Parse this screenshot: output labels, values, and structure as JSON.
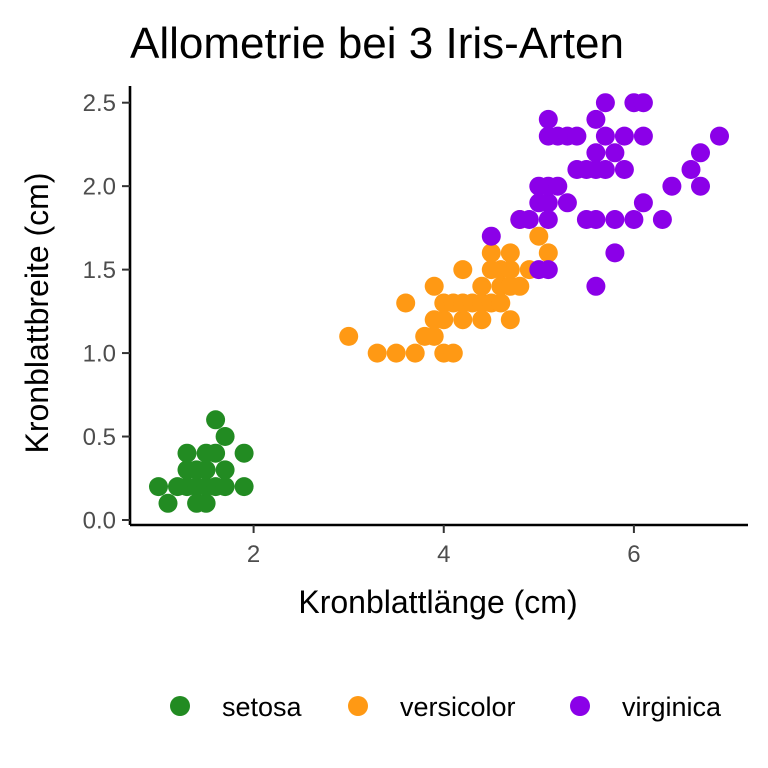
{
  "chart_data": {
    "type": "scatter",
    "title": "Allometrie bei 3 Iris-Arten",
    "xlabel": "Kronblattlänge (cm)",
    "ylabel": "Kronblattbreite (cm)",
    "xlim": [
      0.7,
      7.2
    ],
    "ylim": [
      -0.03,
      2.6
    ],
    "xticks": [
      2,
      4,
      6
    ],
    "xtick_labels": [
      "2",
      "4",
      "6"
    ],
    "yticks": [
      0.0,
      0.5,
      1.0,
      1.5,
      2.0,
      2.5
    ],
    "ytick_labels": [
      "0.0",
      "0.5",
      "1.0",
      "1.5",
      "2.0",
      "2.5"
    ],
    "grid": false,
    "legend_position": "bottom",
    "series": [
      {
        "name": "setosa",
        "color": "#228B22",
        "points": [
          [
            1.0,
            0.2
          ],
          [
            1.1,
            0.1
          ],
          [
            1.2,
            0.2
          ],
          [
            1.3,
            0.2
          ],
          [
            1.3,
            0.3
          ],
          [
            1.3,
            0.4
          ],
          [
            1.4,
            0.1
          ],
          [
            1.4,
            0.2
          ],
          [
            1.4,
            0.3
          ],
          [
            1.5,
            0.1
          ],
          [
            1.5,
            0.2
          ],
          [
            1.5,
            0.3
          ],
          [
            1.5,
            0.4
          ],
          [
            1.6,
            0.2
          ],
          [
            1.6,
            0.4
          ],
          [
            1.6,
            0.6
          ],
          [
            1.7,
            0.2
          ],
          [
            1.7,
            0.3
          ],
          [
            1.7,
            0.5
          ],
          [
            1.9,
            0.2
          ],
          [
            1.9,
            0.4
          ]
        ]
      },
      {
        "name": "versicolor",
        "color": "#FF9914",
        "points": [
          [
            3.0,
            1.1
          ],
          [
            3.3,
            1.0
          ],
          [
            3.5,
            1.0
          ],
          [
            3.6,
            1.3
          ],
          [
            3.7,
            1.0
          ],
          [
            3.8,
            1.1
          ],
          [
            3.9,
            1.1
          ],
          [
            3.9,
            1.2
          ],
          [
            3.9,
            1.4
          ],
          [
            4.0,
            1.0
          ],
          [
            4.0,
            1.2
          ],
          [
            4.0,
            1.3
          ],
          [
            4.1,
            1.0
          ],
          [
            4.1,
            1.3
          ],
          [
            4.2,
            1.2
          ],
          [
            4.2,
            1.3
          ],
          [
            4.2,
            1.5
          ],
          [
            4.3,
            1.3
          ],
          [
            4.4,
            1.2
          ],
          [
            4.4,
            1.3
          ],
          [
            4.4,
            1.4
          ],
          [
            4.5,
            1.3
          ],
          [
            4.5,
            1.5
          ],
          [
            4.6,
            1.3
          ],
          [
            4.6,
            1.4
          ],
          [
            4.6,
            1.5
          ],
          [
            4.7,
            1.2
          ],
          [
            4.7,
            1.4
          ],
          [
            4.7,
            1.5
          ],
          [
            4.8,
            1.4
          ],
          [
            4.8,
            1.8
          ],
          [
            4.9,
            1.5
          ],
          [
            5.0,
            1.7
          ],
          [
            5.1,
            1.6
          ],
          [
            4.5,
            1.6
          ],
          [
            4.7,
            1.6
          ]
        ]
      },
      {
        "name": "virginica",
        "color": "#8B00E8",
        "points": [
          [
            4.5,
            1.7
          ],
          [
            4.8,
            1.8
          ],
          [
            4.9,
            1.8
          ],
          [
            5.0,
            1.5
          ],
          [
            5.0,
            1.9
          ],
          [
            5.0,
            2.0
          ],
          [
            5.1,
            1.5
          ],
          [
            5.1,
            1.8
          ],
          [
            5.1,
            1.9
          ],
          [
            5.1,
            2.0
          ],
          [
            5.1,
            2.3
          ],
          [
            5.1,
            2.4
          ],
          [
            5.2,
            2.0
          ],
          [
            5.2,
            2.3
          ],
          [
            5.3,
            1.9
          ],
          [
            5.3,
            2.3
          ],
          [
            5.4,
            2.1
          ],
          [
            5.4,
            2.3
          ],
          [
            5.5,
            1.8
          ],
          [
            5.5,
            2.1
          ],
          [
            5.6,
            1.4
          ],
          [
            5.6,
            1.8
          ],
          [
            5.6,
            2.1
          ],
          [
            5.6,
            2.2
          ],
          [
            5.6,
            2.4
          ],
          [
            5.7,
            2.1
          ],
          [
            5.7,
            2.3
          ],
          [
            5.7,
            2.5
          ],
          [
            5.8,
            1.6
          ],
          [
            5.8,
            1.8
          ],
          [
            5.8,
            2.2
          ],
          [
            5.9,
            2.1
          ],
          [
            5.9,
            2.3
          ],
          [
            6.0,
            1.8
          ],
          [
            6.0,
            2.5
          ],
          [
            6.1,
            1.9
          ],
          [
            6.1,
            2.3
          ],
          [
            6.1,
            2.5
          ],
          [
            6.3,
            1.8
          ],
          [
            6.4,
            2.0
          ],
          [
            6.6,
            2.1
          ],
          [
            6.7,
            2.0
          ],
          [
            6.7,
            2.2
          ],
          [
            6.9,
            2.3
          ]
        ]
      }
    ]
  }
}
